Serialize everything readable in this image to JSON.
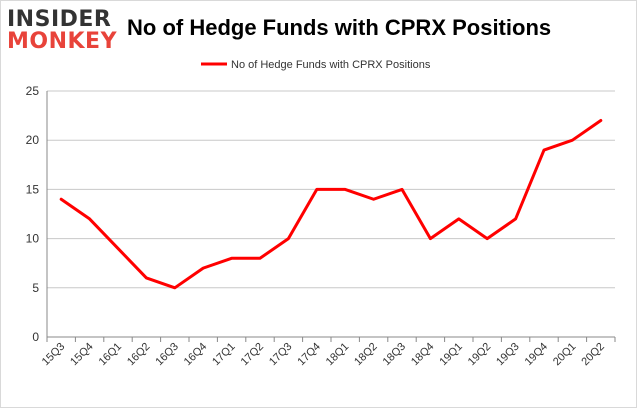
{
  "logo": {
    "line1": "INSIDER",
    "line2": "MONKEY",
    "colors": {
      "dark": "#333333",
      "accent": "#e8433a"
    }
  },
  "chart_title": "No of Hedge Funds with CPRX Positions",
  "chart_data": {
    "type": "line",
    "title": "No of Hedge Funds with CPRX Positions",
    "xlabel": "",
    "ylabel": "",
    "categories": [
      "15Q3",
      "15Q4",
      "16Q1",
      "16Q2",
      "16Q3",
      "16Q4",
      "17Q1",
      "17Q2",
      "17Q3",
      "17Q4",
      "18Q1",
      "18Q2",
      "18Q3",
      "18Q4",
      "19Q1",
      "19Q2",
      "19Q3",
      "19Q4",
      "20Q1",
      "20Q2"
    ],
    "series": [
      {
        "name": "No of Hedge Funds with CPRX Positions",
        "color": "#ff0000",
        "values": [
          14,
          12,
          9,
          6,
          5,
          7,
          8,
          8,
          10,
          15,
          15,
          14,
          15,
          10,
          12,
          10,
          12,
          19,
          20,
          22
        ]
      }
    ],
    "ylim": [
      0,
      25
    ],
    "yticks": [
      0,
      5,
      10,
      15,
      20,
      25
    ],
    "grid": true,
    "legend": "top-center"
  }
}
